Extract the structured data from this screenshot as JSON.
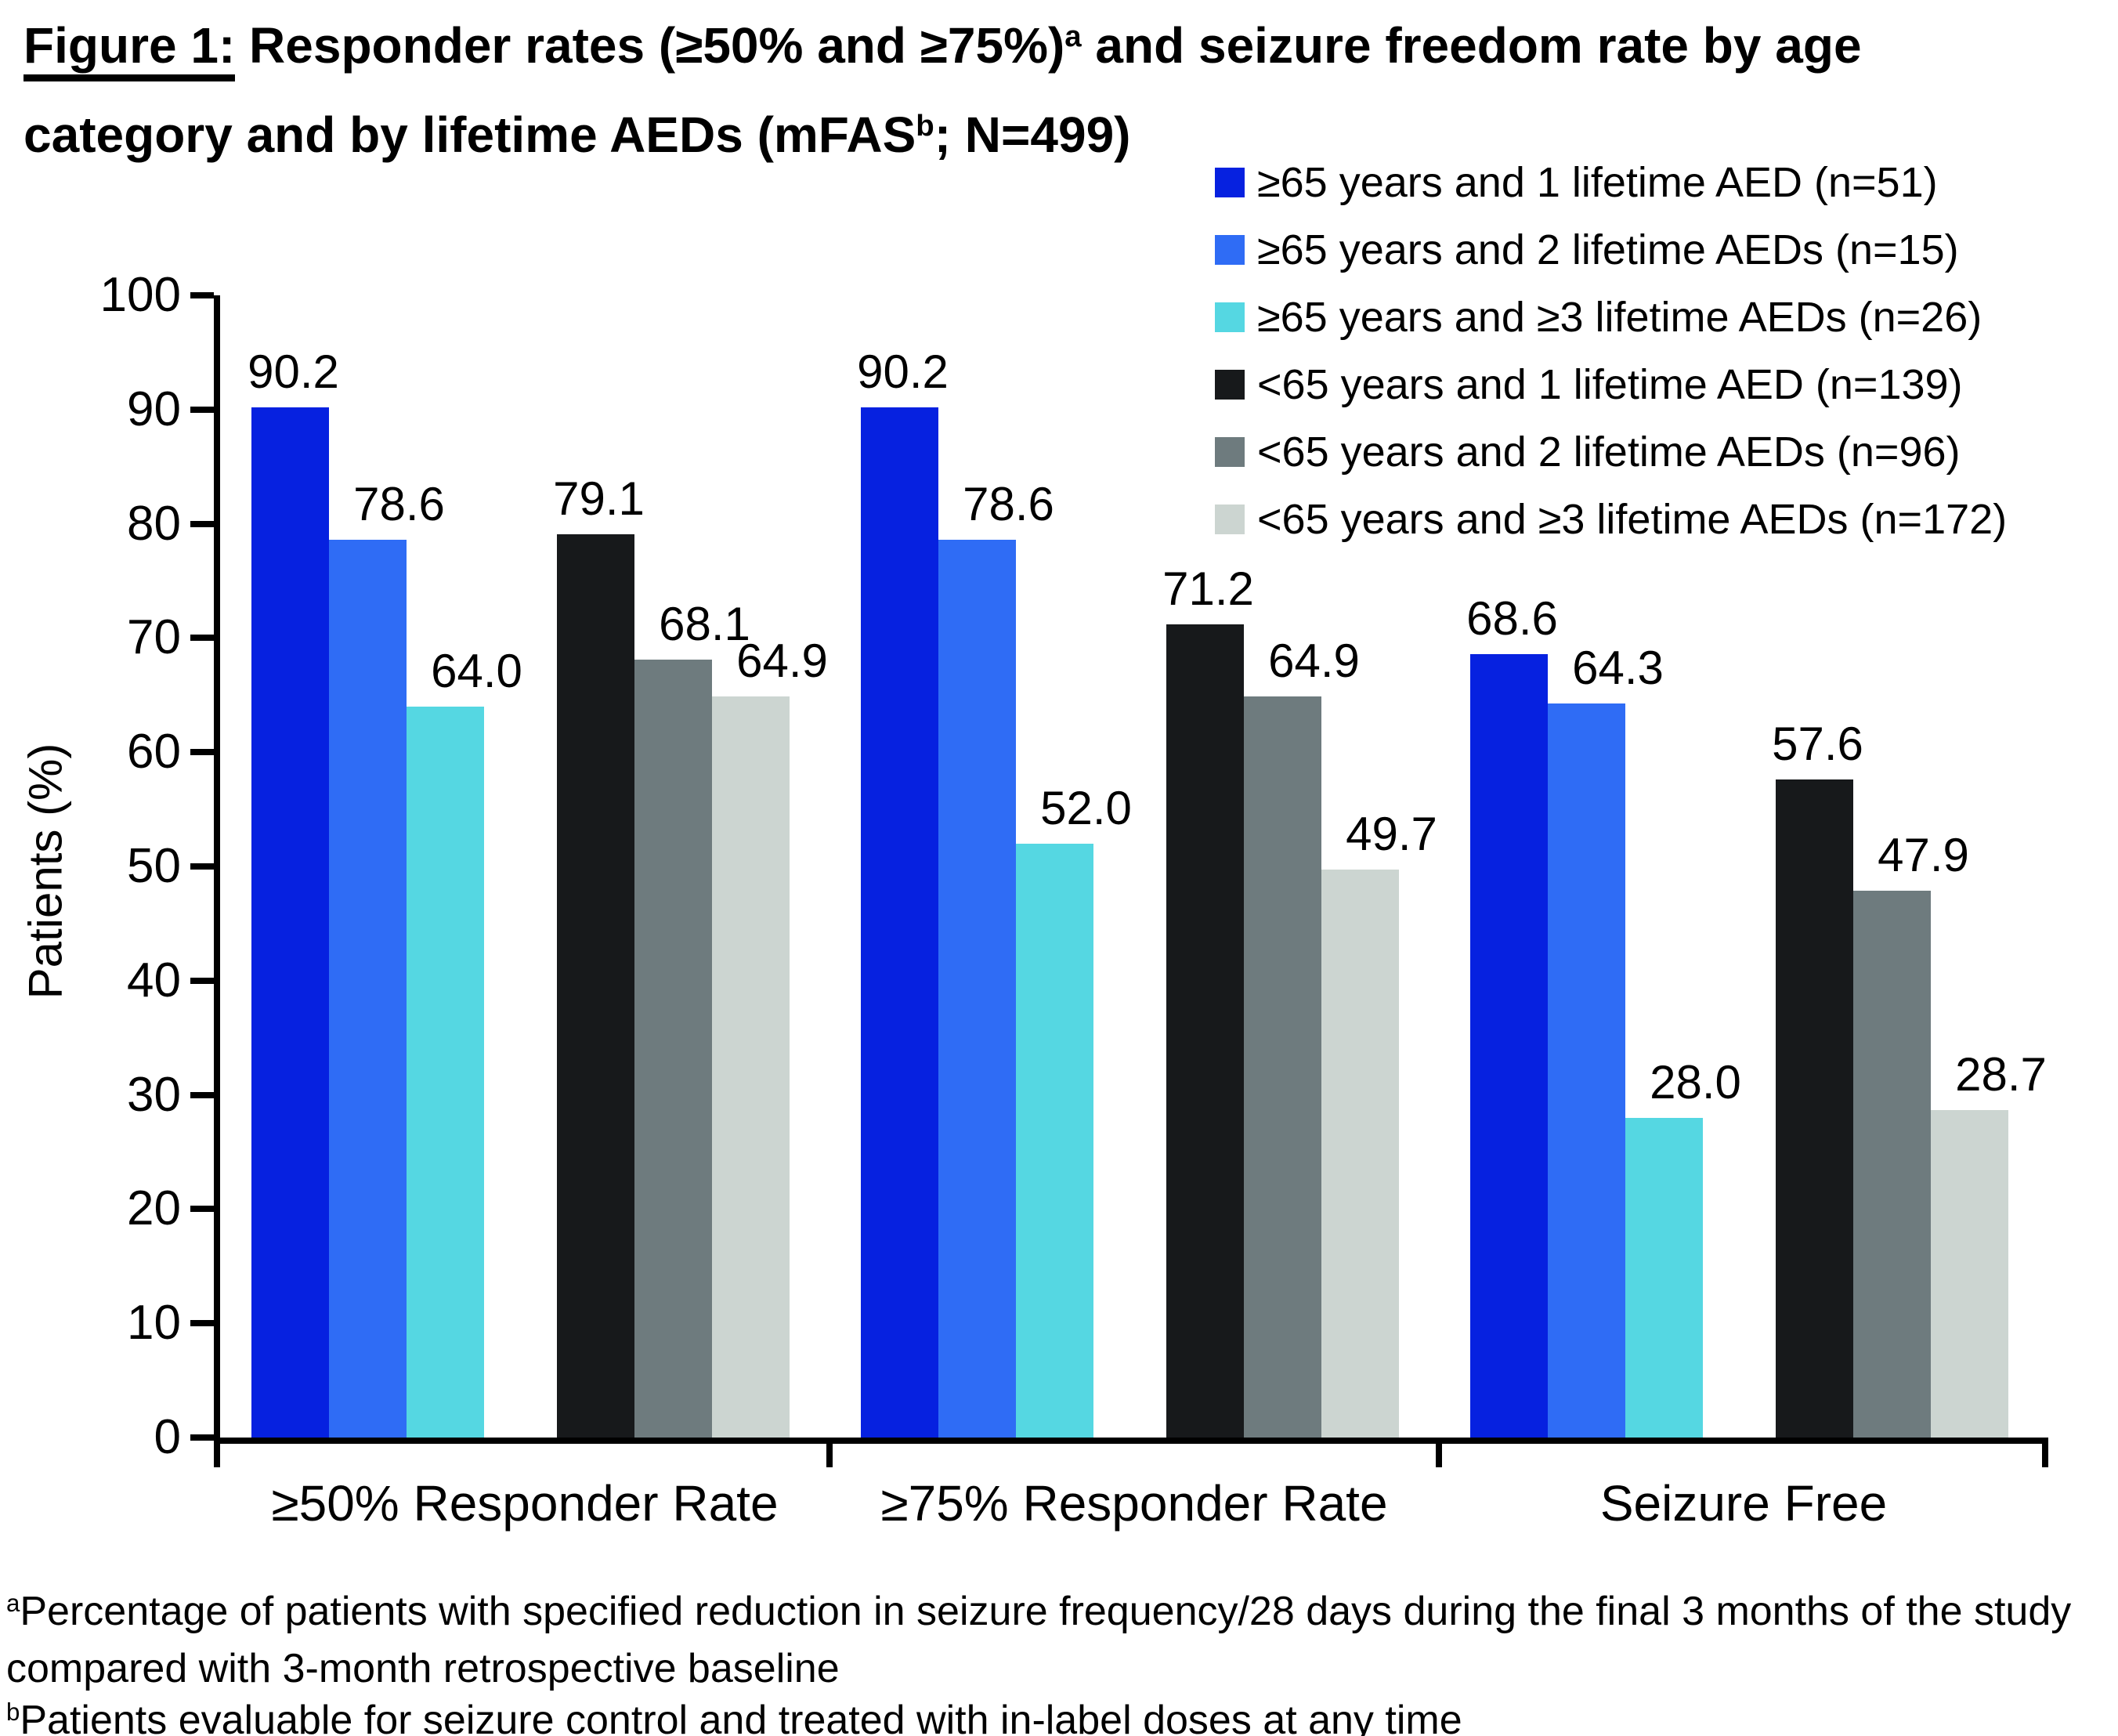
{
  "figure": {
    "title": {
      "lines": [
        [
          {
            "t": "Figure 1:",
            "underline": true
          },
          {
            "t": " Responder rates (≥50% and ≥75%)"
          },
          {
            "t": "a",
            "sup": true
          },
          {
            "t": " and seizure freedom rate by age"
          }
        ],
        [
          {
            "t": "category and by lifetime AEDs (mFAS"
          },
          {
            "t": "b",
            "sup": true
          },
          {
            "t": "; N=499)"
          }
        ]
      ]
    },
    "footnotes": [
      {
        "sup": "a",
        "t": "Percentage of patients with specified reduction in seizure frequency/28 days during the final 3 months of the study compared with 3-month retrospective baseline"
      },
      {
        "sup": "b",
        "t": "Patients evaluable for seizure control and treated with in-label doses at any time"
      }
    ]
  },
  "chart_data": {
    "type": "bar",
    "title": "Figure 1: Responder rates (≥50% and ≥75%)a and seizure freedom rate by age category and by lifetime AEDs (mFASb; N=499)",
    "categories": [
      "≥50% Responder Rate",
      "≥75% Responder Rate",
      "Seizure Free"
    ],
    "series": [
      {
        "name": "≥65 years and 1 lifetime AED (n=51)",
        "color": "#0621e0",
        "values": [
          90.2,
          90.2,
          68.6
        ]
      },
      {
        "name": "≥65 years and 2 lifetime AEDs (n=15)",
        "color": "#2f6cf5",
        "values": [
          78.6,
          78.6,
          64.3
        ]
      },
      {
        "name": "≥65 years and ≥3 lifetime AEDs (n=26)",
        "color": "#55d7e2",
        "values": [
          64.0,
          52.0,
          28.0
        ]
      },
      {
        "name": "<65 years and 1 lifetime AED (n=139)",
        "color": "#17191b",
        "values": [
          79.1,
          71.2,
          57.6
        ]
      },
      {
        "name": "<65 years and 2 lifetime AEDs (n=96)",
        "color": "#6e7b7e",
        "values": [
          68.1,
          64.9,
          47.9
        ]
      },
      {
        "name": "<65 years and ≥3 lifetime AEDs (n=172)",
        "color": "#ccd5d1",
        "values": [
          64.9,
          49.7,
          28.7
        ]
      }
    ],
    "ylabel": "Patients (%)",
    "xlabel": "",
    "ylim": [
      0,
      100
    ],
    "ytick_step": 10,
    "grid": false,
    "legend_position": "top-right",
    "cluster_gap_after_series_index": 2,
    "value_label_decimals": 1,
    "axis_color": "#000000",
    "background_color": "#ffffff"
  }
}
